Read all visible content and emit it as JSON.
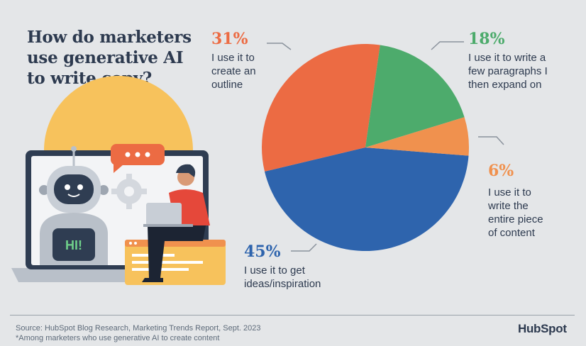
{
  "title": "How do marketers\nuse generative AI\nto write copy?",
  "colors": {
    "ideas": "#2e64ad",
    "outline": "#ec6b43",
    "paragraphs": "#4dab6c",
    "entire": "#f0914e",
    "title_text": "#2d3a4f"
  },
  "chart_data": {
    "type": "pie",
    "title": "How do marketers use generative AI to write copy?",
    "slices": [
      {
        "label": "I use it to get ideas/inspiration",
        "pct_label": "45%",
        "value": 45,
        "color": "#2e64ad"
      },
      {
        "label": "I use it to create an outline",
        "pct_label": "31%",
        "value": 31,
        "color": "#ec6b43"
      },
      {
        "label": "I use it to write a few paragraphs I then expand on",
        "pct_label": "18%",
        "value": 18,
        "color": "#4dab6c"
      },
      {
        "label": "I use it to write the entire piece of content",
        "pct_label": "6%",
        "value": 6,
        "color": "#f0914e"
      }
    ]
  },
  "labels": {
    "outline": {
      "pct": "31%",
      "text": "I use it to\ncreate an\noutline"
    },
    "paragraphs": {
      "pct": "18%",
      "text": "I use it to write a\nfew paragraphs I\nthen expand on"
    },
    "entire": {
      "pct": "6%",
      "text": "I use it to\nwrite the\nentire piece\nof content"
    },
    "ideas": {
      "pct": "45%",
      "text": "I use it to get\nideas/inspiration"
    }
  },
  "illustration": {
    "robot_screen_text": "HI!",
    "speech_bubble": "..."
  },
  "footer": {
    "source": "Source: HubSpot Blog Research, Marketing Trends Report, Sept. 2023",
    "note": "*Among marketers who use generative AI to create content",
    "logo": "HubSpot"
  }
}
